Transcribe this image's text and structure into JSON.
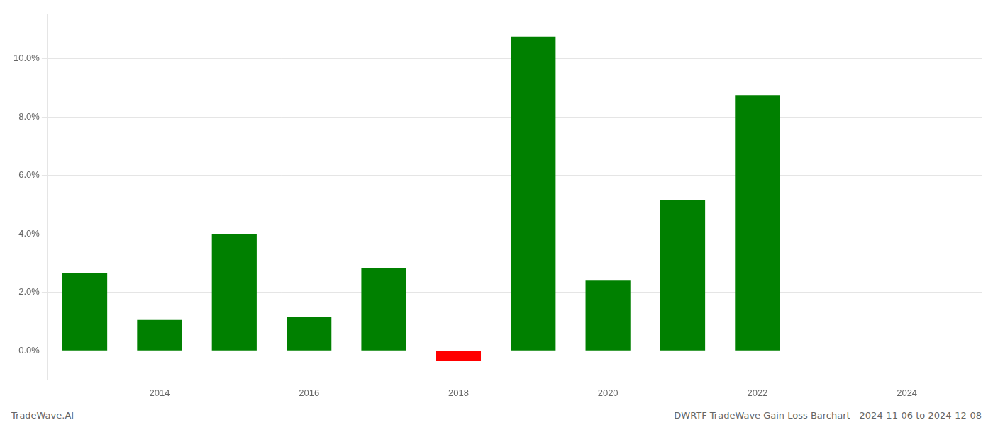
{
  "chart_data": {
    "type": "bar",
    "title": "DWRTF TradeWave Gain Loss Barchart - 2024-11-06 to 2024-12-08",
    "annotations": [
      "TradeWave.AI"
    ],
    "x": [
      2013,
      2014,
      2015,
      2016,
      2017,
      2018,
      2019,
      2020,
      2021,
      2022
    ],
    "values": [
      0.0265,
      0.0105,
      0.04,
      0.0115,
      0.0283,
      -0.0035,
      0.1075,
      0.024,
      0.0515,
      0.0875
    ],
    "colors": [
      "#008000",
      "#008000",
      "#008000",
      "#008000",
      "#008000",
      "#ff0000",
      "#008000",
      "#008000",
      "#008000",
      "#008000"
    ],
    "xlim": [
      2012.5,
      2025.0
    ],
    "xticks": [
      2014,
      2016,
      2018,
      2020,
      2022,
      2024
    ],
    "ylim": [
      -0.01,
      0.115
    ],
    "yticks": [
      {
        "value": 0.0,
        "label": "0.0%"
      },
      {
        "value": 0.02,
        "label": "2.0%"
      },
      {
        "value": 0.04,
        "label": "4.0%"
      },
      {
        "value": 0.06,
        "label": "6.0%"
      },
      {
        "value": 0.08,
        "label": "8.0%"
      },
      {
        "value": 0.1,
        "label": "10.0%"
      }
    ],
    "grid": "y"
  }
}
